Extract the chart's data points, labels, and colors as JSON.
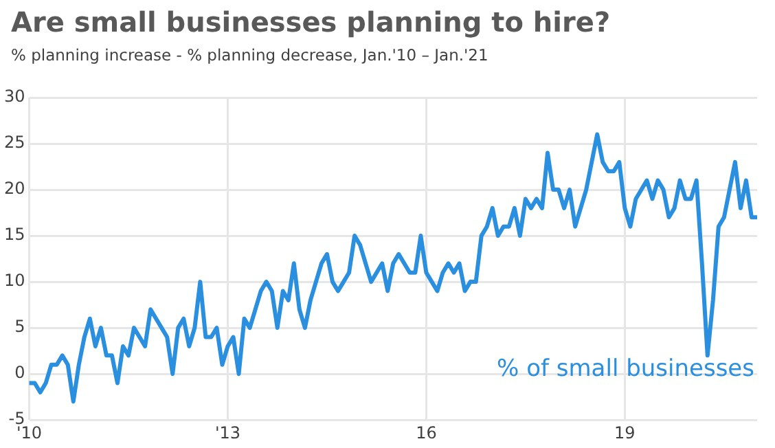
{
  "chart_data": {
    "type": "line",
    "title": "Are small businesses planning to hire?",
    "subtitle": "% planning increase - % planning decrease, Jan.'10 – Jan.'21",
    "x": [
      "2010-01",
      "2010-02",
      "2010-03",
      "2010-04",
      "2010-05",
      "2010-06",
      "2010-07",
      "2010-08",
      "2010-09",
      "2010-10",
      "2010-11",
      "2010-12",
      "2011-01",
      "2011-02",
      "2011-03",
      "2011-04",
      "2011-05",
      "2011-06",
      "2011-07",
      "2011-08",
      "2011-09",
      "2011-10",
      "2011-11",
      "2011-12",
      "2012-01",
      "2012-02",
      "2012-03",
      "2012-04",
      "2012-05",
      "2012-06",
      "2012-07",
      "2012-08",
      "2012-09",
      "2012-10",
      "2012-11",
      "2012-12",
      "2013-01",
      "2013-02",
      "2013-03",
      "2013-04",
      "2013-05",
      "2013-06",
      "2013-07",
      "2013-08",
      "2013-09",
      "2013-10",
      "2013-11",
      "2013-12",
      "2014-01",
      "2014-02",
      "2014-03",
      "2014-04",
      "2014-05",
      "2014-06",
      "2014-07",
      "2014-08",
      "2014-09",
      "2014-10",
      "2014-11",
      "2014-12",
      "2015-01",
      "2015-02",
      "2015-03",
      "2015-04",
      "2015-05",
      "2015-06",
      "2015-07",
      "2015-08",
      "2015-09",
      "2015-10",
      "2015-11",
      "2015-12",
      "2016-01",
      "2016-02",
      "2016-03",
      "2016-04",
      "2016-05",
      "2016-06",
      "2016-07",
      "2016-08",
      "2016-09",
      "2016-10",
      "2016-11",
      "2016-12",
      "2017-01",
      "2017-02",
      "2017-03",
      "2017-04",
      "2017-05",
      "2017-06",
      "2017-07",
      "2017-08",
      "2017-09",
      "2017-10",
      "2017-11",
      "2017-12",
      "2018-01",
      "2018-02",
      "2018-03",
      "2018-04",
      "2018-05",
      "2018-06",
      "2018-07",
      "2018-08",
      "2018-09",
      "2018-10",
      "2018-11",
      "2018-12",
      "2019-01",
      "2019-02",
      "2019-03",
      "2019-04",
      "2019-05",
      "2019-06",
      "2019-07",
      "2019-08",
      "2019-09",
      "2019-10",
      "2019-11",
      "2019-12",
      "2020-01",
      "2020-02",
      "2020-03",
      "2020-04",
      "2020-05",
      "2020-06",
      "2020-07",
      "2020-08",
      "2020-09",
      "2020-10",
      "2020-11",
      "2020-12",
      "2021-01"
    ],
    "series": [
      {
        "name": "% of small businesses",
        "color": "#2b8fe0",
        "values": [
          -1,
          -1,
          -2,
          -1,
          1,
          1,
          2,
          1,
          -3,
          1,
          4,
          6,
          3,
          5,
          2,
          2,
          -1,
          3,
          2,
          5,
          4,
          3,
          7,
          6,
          5,
          4,
          0,
          5,
          6,
          3,
          5,
          10,
          4,
          4,
          5,
          1,
          3,
          4,
          0,
          6,
          5,
          7,
          9,
          10,
          9,
          5,
          9,
          8,
          12,
          7,
          5,
          8,
          10,
          12,
          13,
          10,
          9,
          10,
          11,
          15,
          14,
          12,
          10,
          11,
          12,
          9,
          12,
          13,
          12,
          11,
          11,
          15,
          11,
          10,
          9,
          11,
          12,
          11,
          12,
          9,
          10,
          10,
          15,
          16,
          18,
          15,
          16,
          16,
          18,
          15,
          19,
          18,
          19,
          18,
          24,
          20,
          20,
          18,
          20,
          16,
          18,
          20,
          23,
          26,
          23,
          22,
          22,
          23,
          18,
          16,
          19,
          20,
          21,
          19,
          21,
          20,
          17,
          18,
          21,
          19,
          19,
          21,
          12,
          2,
          8,
          16,
          17,
          20,
          23,
          18,
          21,
          17,
          17
        ]
      }
    ],
    "xlim": [
      "2010-01",
      "2021-01"
    ],
    "xticks": [
      {
        "value": "2010-01",
        "label": "'10"
      },
      {
        "value": "2013-01",
        "label": "'13"
      },
      {
        "value": "2016-01",
        "label": "16"
      },
      {
        "value": "2019-01",
        "label": "19"
      }
    ],
    "ylim": [
      -5,
      30
    ],
    "yticks": [
      -5,
      0,
      5,
      10,
      15,
      20,
      25,
      30
    ],
    "grid": true,
    "legend": false,
    "marker": "none",
    "line_style": "solid"
  }
}
